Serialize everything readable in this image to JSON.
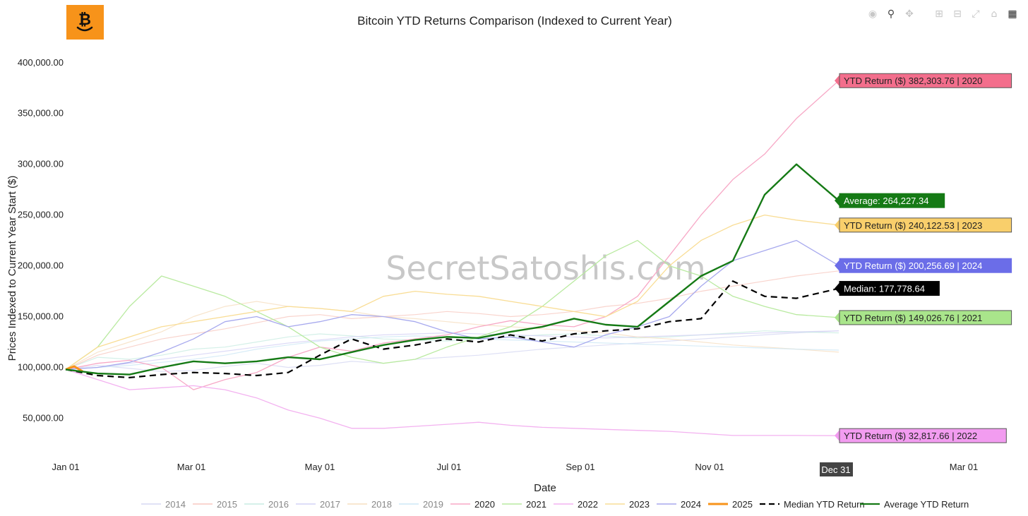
{
  "toolbar": {
    "icons": [
      "camera-icon",
      "zoom-icon",
      "pan-icon",
      "zoom-in-icon",
      "zoom-out-icon",
      "autoscale-icon",
      "home-icon",
      "plotly-logo-icon"
    ]
  },
  "colors": {
    "y2014": "#d6d8f2",
    "y2015": "#f7c9c0",
    "y2016": "#c9ece2",
    "y2017": "#d4d2f5",
    "y2018": "#f6dfc1",
    "y2019": "#cde7f5",
    "y2020": "#f7a8c6",
    "y2021": "#b9eaa0",
    "y2022": "#f3b2f0",
    "y2023": "#f9dd95",
    "y2024": "#a7a9ee",
    "y2025": "#f7931a",
    "median": "#000000",
    "average": "#157a15"
  },
  "chart_data": {
    "type": "line",
    "title": "Bitcoin YTD Returns Comparison (Indexed to Current Year)",
    "xlabel": "Date",
    "ylabel": "Prices Indexed to Current Year Start ($)",
    "watermark": "SecretSatoshis.com",
    "x_axis": {
      "type": "date",
      "range": [
        "Jan 01",
        "Mar 01 (next year)"
      ],
      "ticks": [
        "Jan 01",
        "Mar 01",
        "May 01",
        "Jul 01",
        "Sep 01",
        "Nov 01",
        "Mar 01"
      ],
      "hover_label": "Dec 31"
    },
    "y_axis": {
      "ticks": [
        "50,000.00",
        "100,000.00",
        "150,000.00",
        "200,000.00",
        "250,000.00",
        "300,000.00",
        "350,000.00",
        "400,000.00"
      ],
      "tick_values": [
        50000,
        100000,
        150000,
        200000,
        250000,
        300000,
        350000,
        400000
      ],
      "range": [
        10000,
        420000
      ]
    },
    "grid": false,
    "legend_position": "bottom",
    "legend": [
      "2014",
      "2015",
      "2016",
      "2017",
      "2018",
      "2019",
      "2020",
      "2021",
      "2022",
      "2023",
      "2024",
      "2025",
      "Median YTD Return",
      "Average YTD Return"
    ],
    "annotations": [
      {
        "text": "YTD Return ($) 382,303.76 | 2020",
        "value": 382303.76,
        "series": "2020"
      },
      {
        "text": "Average: 264,227.34",
        "value": 264227.34,
        "series": "Average YTD Return"
      },
      {
        "text": "YTD Return ($) 240,122.53 | 2023",
        "value": 240122.53,
        "series": "2023"
      },
      {
        "text": "YTD Return ($) 200,256.69 | 2024",
        "value": 200256.69,
        "series": "2024"
      },
      {
        "text": "Median: 177,778.64",
        "value": 177778.64,
        "series": "Median YTD Return"
      },
      {
        "text": "YTD Return ($) 149,026.76 | 2021",
        "value": 149026.76,
        "series": "2021"
      },
      {
        "text": "YTD Return ($) 32,817.66 | 2022",
        "value": 32817.66,
        "series": "2022"
      }
    ],
    "series_x_day": [
      0,
      15,
      30,
      45,
      60,
      75,
      90,
      105,
      120,
      135,
      150,
      165,
      180,
      195,
      210,
      225,
      240,
      255,
      270,
      285,
      300,
      315,
      330,
      345,
      365
    ],
    "series": [
      {
        "name": "2014",
        "emphasis": "faded",
        "values": [
          98000,
          102000,
          99000,
          96000,
          97000,
          101000,
          104000,
          100000,
          102000,
          106000,
          104000,
          108000,
          110000,
          112000,
          115000,
          118000,
          120000,
          122000,
          124000,
          126000,
          128000,
          130000,
          132000,
          134000,
          136000
        ]
      },
      {
        "name": "2015",
        "emphasis": "faded",
        "values": [
          98000,
          112000,
          120000,
          128000,
          133000,
          138000,
          144000,
          150000,
          152000,
          148000,
          150000,
          152000,
          155000,
          153000,
          150000,
          152000,
          155000,
          160000,
          163000,
          168000,
          175000,
          180000,
          185000,
          190000,
          195000
        ]
      },
      {
        "name": "2016",
        "emphasis": "faded",
        "values": [
          98000,
          110000,
          108000,
          112000,
          118000,
          120000,
          125000,
          130000,
          133000,
          131000,
          128000,
          127000,
          126000,
          128000,
          130000,
          132000,
          133000,
          131000,
          129000,
          130000,
          132000,
          134000,
          136000,
          135000,
          134000
        ]
      },
      {
        "name": "2017",
        "emphasis": "faded",
        "values": [
          98000,
          100000,
          104000,
          108000,
          112000,
          116000,
          120000,
          124000,
          127000,
          130000,
          132000,
          133000,
          134000,
          133000,
          132000,
          131000,
          130000,
          129000,
          130000,
          131000,
          132000,
          133000,
          134000,
          135000,
          136000
        ]
      },
      {
        "name": "2018",
        "emphasis": "faded",
        "values": [
          98000,
          115000,
          125000,
          135000,
          150000,
          160000,
          165000,
          160000,
          158000,
          155000,
          150000,
          148000,
          145000,
          142000,
          140000,
          138000,
          136000,
          134000,
          130000,
          128000,
          125000,
          122000,
          120000,
          118000,
          115000
        ]
      },
      {
        "name": "2019",
        "emphasis": "faded",
        "values": [
          98000,
          100000,
          102000,
          105000,
          108000,
          112000,
          118000,
          122000,
          126000,
          128000,
          130000,
          131000,
          130000,
          128000,
          127000,
          126000,
          125000,
          124000,
          123000,
          122000,
          121000,
          120000,
          119000,
          118000,
          117000
        ]
      },
      {
        "name": "2020",
        "emphasis": "normal",
        "values": [
          98000,
          104000,
          107000,
          100000,
          78000,
          88000,
          95000,
          110000,
          120000,
          116000,
          124000,
          128000,
          132000,
          140000,
          146000,
          142000,
          140000,
          150000,
          170000,
          210000,
          250000,
          285000,
          310000,
          345000,
          382303.76
        ]
      },
      {
        "name": "2021",
        "emphasis": "normal",
        "values": [
          98000,
          120000,
          160000,
          190000,
          180000,
          170000,
          155000,
          140000,
          120000,
          110000,
          104000,
          108000,
          120000,
          130000,
          140000,
          160000,
          185000,
          210000,
          225000,
          200000,
          190000,
          170000,
          160000,
          152000,
          149026.76
        ]
      },
      {
        "name": "2022",
        "emphasis": "normal",
        "values": [
          98000,
          88000,
          78000,
          80000,
          82000,
          78000,
          70000,
          58000,
          50000,
          40000,
          40000,
          42000,
          44000,
          46000,
          43000,
          41000,
          40000,
          39000,
          38000,
          37000,
          35000,
          33000,
          33000,
          33000,
          32817.66
        ]
      },
      {
        "name": "2023",
        "emphasis": "normal",
        "values": [
          98000,
          120000,
          130000,
          140000,
          145000,
          150000,
          155000,
          160000,
          158000,
          155000,
          170000,
          175000,
          172000,
          170000,
          165000,
          160000,
          155000,
          150000,
          165000,
          200000,
          225000,
          240000,
          250000,
          245000,
          240122.53
        ]
      },
      {
        "name": "2024",
        "emphasis": "normal",
        "values": [
          98000,
          100000,
          105000,
          115000,
          128000,
          145000,
          150000,
          140000,
          145000,
          152000,
          150000,
          145000,
          135000,
          128000,
          130000,
          125000,
          120000,
          132000,
          140000,
          150000,
          180000,
          205000,
          215000,
          225000,
          200256.69
        ]
      },
      {
        "name": "2025",
        "emphasis": "highlight",
        "values": [
          98000,
          101000,
          96000
        ]
      },
      {
        "name": "Median YTD Return",
        "emphasis": "dashed",
        "values": [
          98000,
          92000,
          90000,
          93000,
          95000,
          94000,
          92000,
          95000,
          112000,
          128000,
          118000,
          122000,
          128000,
          125000,
          132000,
          126000,
          133000,
          136000,
          138000,
          145000,
          148000,
          185000,
          170000,
          168000,
          177778.64
        ]
      },
      {
        "name": "Average YTD Return",
        "emphasis": "bold",
        "values": [
          98000,
          94000,
          93000,
          100000,
          106000,
          104000,
          106000,
          110000,
          108000,
          115000,
          122000,
          127000,
          130000,
          129000,
          135000,
          140000,
          148000,
          142000,
          140000,
          165000,
          190000,
          205000,
          270000,
          300000,
          264227.34
        ]
      }
    ]
  }
}
